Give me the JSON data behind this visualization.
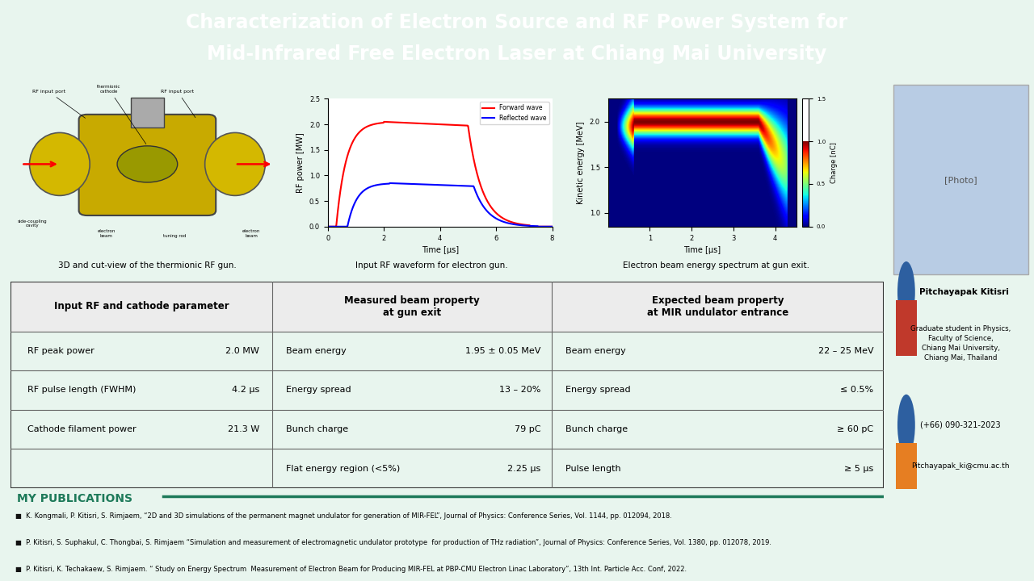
{
  "title_line1": "Characterization of Electron Source and RF Power System for",
  "title_line2": "Mid-Infrared Free Electron Laser at Chiang Mai University",
  "title_bg_color": "#1e7a5a",
  "title_text_color": "#ffffff",
  "body_bg_color": "#e8f5ee",
  "panel_bg_color": "#ffffff",
  "caption1": "3D and cut-view of the thermionic RF gun.",
  "caption2": "Input RF waveform for electron gun.",
  "caption3": "Electron beam energy spectrum at gun exit.",
  "table_header_color": "#e8e8e8",
  "table_border_color": "#555555",
  "col1_header": "Input RF and cathode parameter",
  "col2_header": "Measured beam property\nat gun exit",
  "col3_header": "Expected beam property\nat MIR undulator entrance",
  "table_rows": [
    [
      "RF peak power",
      "2.0 MW",
      "Beam energy",
      "1.95 ± 0.05 MeV",
      "Beam energy",
      "22 – 25 MeV"
    ],
    [
      "RF pulse length (FWHM)",
      "4.2 μs",
      "Energy spread",
      "13 – 20%",
      "Energy spread",
      "≤ 0.5%"
    ],
    [
      "Cathode filament power",
      "21.3 W",
      "Bunch charge",
      "79 pC",
      "Bunch charge",
      "≥ 60 pC"
    ],
    [
      "",
      "",
      "Flat energy region (<5%)",
      "2.25 μs",
      "Pulse length",
      "≥ 5 μs"
    ]
  ],
  "pub_title": "MY PUBLICATIONS",
  "pub_title_color": "#1e7a5a",
  "publications": [
    "K. Kongmali, P. Kitisri, S. Rimjaem, “2D and 3D simulations of the permanent magnet undulator for generation of MIR-FEL”, Journal of Physics: Conference Series, Vol. 1144, pp. 012094, 2018.",
    "P. Kitisri, S. Suphakul, C. Thongbai, S. Rimjaem “Simulation and measurement of electromagnetic undulator prototype  for production of THz radiation”, Journal of Physics: Conference Series, Vol. 1380, pp. 012078, 2019.",
    "P. Kitisri, K. Techakaew, S. Rimjaem. “ Study on Energy Spectrum  Measurement of Electron Beam for Producing MIR-FEL at PBP-CMU Electron Linac Laboratory”, 13th Int. Particle Acc. Conf, 2022."
  ],
  "sidebar_name": "Pitchayapak Kitisri",
  "sidebar_affiliation": "Graduate student in Physics,\nFaculty of Science,\nChiang Mai University,\nChiang Mai, Thailand",
  "sidebar_phone": "(+66) 090-321-2023",
  "sidebar_email": "Pitchayapak_ki@cmu.ac.th",
  "icon_person_color": "#2d5fa0",
  "icon_building_color": "#c0392b",
  "icon_phone_color": "#2d5fa0",
  "icon_email_color": "#e67e22"
}
